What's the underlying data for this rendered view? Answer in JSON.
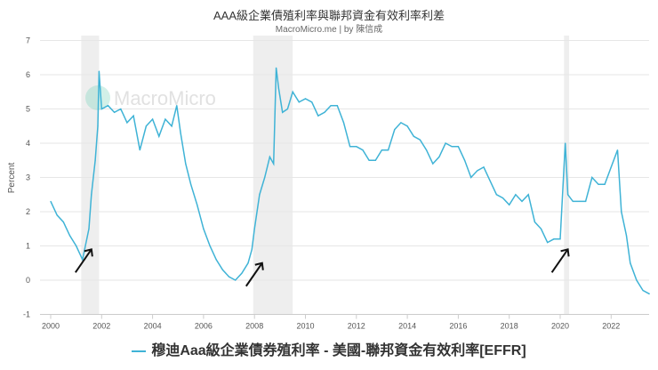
{
  "title": "AAA級企業債殖利率與聯邦資金有效利率利差",
  "subtitle": "MacroMicro.me | by 陳信成",
  "watermark": "MacroMicro",
  "chart_data": {
    "type": "line",
    "ylabel": "Percent",
    "xlabel": "",
    "xlim": [
      2000,
      2023.6
    ],
    "ylim": [
      -1,
      7
    ],
    "x_ticks": [
      "2000",
      "2002",
      "2004",
      "2006",
      "2008",
      "2010",
      "2012",
      "2014",
      "2016",
      "2018",
      "2020",
      "2022"
    ],
    "y_ticks": [
      "7",
      "6",
      "5",
      "4",
      "3",
      "2",
      "1",
      "0",
      "-1"
    ],
    "grid": "horizontal",
    "legend_placement": "bottom",
    "line_color": "#3fb3d6",
    "shaded_periods": [
      [
        2001.2,
        2001.9
      ],
      [
        2007.95,
        2009.5
      ],
      [
        2020.15,
        2020.35
      ]
    ],
    "annotations": [
      {
        "type": "arrow",
        "x": 2001.6,
        "y": 0.9
      },
      {
        "type": "arrow",
        "x": 2008.3,
        "y": 0.5
      },
      {
        "type": "arrow",
        "x": 2020.3,
        "y": 0.9
      }
    ],
    "series": [
      {
        "name": "穆迪Aaa級企業債券殖利率 - 美國-聯邦資金有效利率[EFFR]",
        "x": [
          2000.0,
          2000.25,
          2000.5,
          2000.75,
          2001.0,
          2001.25,
          2001.5,
          2001.6,
          2001.75,
          2001.85,
          2001.9,
          2002.0,
          2002.25,
          2002.5,
          2002.75,
          2003.0,
          2003.25,
          2003.5,
          2003.75,
          2004.0,
          2004.25,
          2004.5,
          2004.75,
          2004.95,
          2005.1,
          2005.3,
          2005.5,
          2005.75,
          2006.0,
          2006.25,
          2006.5,
          2006.75,
          2007.0,
          2007.25,
          2007.5,
          2007.75,
          2007.9,
          2008.0,
          2008.2,
          2008.4,
          2008.6,
          2008.75,
          2008.85,
          2008.95,
          2009.1,
          2009.3,
          2009.5,
          2009.75,
          2010.0,
          2010.25,
          2010.5,
          2010.75,
          2011.0,
          2011.25,
          2011.5,
          2011.75,
          2012.0,
          2012.25,
          2012.5,
          2012.75,
          2013.0,
          2013.25,
          2013.5,
          2013.75,
          2014.0,
          2014.25,
          2014.5,
          2014.75,
          2015.0,
          2015.25,
          2015.5,
          2015.75,
          2016.0,
          2016.25,
          2016.5,
          2016.75,
          2017.0,
          2017.25,
          2017.5,
          2017.75,
          2018.0,
          2018.25,
          2018.5,
          2018.75,
          2019.0,
          2019.25,
          2019.5,
          2019.75,
          2020.0,
          2020.2,
          2020.3,
          2020.5,
          2020.75,
          2021.0,
          2021.25,
          2021.5,
          2021.75,
          2022.0,
          2022.25,
          2022.4,
          2022.6,
          2022.75,
          2023.0,
          2023.25,
          2023.5
        ],
        "values": [
          2.3,
          1.9,
          1.7,
          1.3,
          1.0,
          0.6,
          1.5,
          2.5,
          3.5,
          4.5,
          6.1,
          5.0,
          5.1,
          4.9,
          5.0,
          4.6,
          4.8,
          3.8,
          4.5,
          4.7,
          4.2,
          4.7,
          4.5,
          5.1,
          4.3,
          3.4,
          2.8,
          2.2,
          1.5,
          1.0,
          0.6,
          0.3,
          0.1,
          0.0,
          0.2,
          0.5,
          0.9,
          1.5,
          2.5,
          3.0,
          3.6,
          3.4,
          6.2,
          5.6,
          4.9,
          5.0,
          5.5,
          5.2,
          5.3,
          5.2,
          4.8,
          4.9,
          5.1,
          5.1,
          4.6,
          3.9,
          3.9,
          3.8,
          3.5,
          3.5,
          3.8,
          3.8,
          4.4,
          4.6,
          4.5,
          4.2,
          4.1,
          3.8,
          3.4,
          3.6,
          4.0,
          3.9,
          3.9,
          3.5,
          3.0,
          3.2,
          3.3,
          2.9,
          2.5,
          2.4,
          2.2,
          2.5,
          2.3,
          2.5,
          1.7,
          1.5,
          1.1,
          1.2,
          1.2,
          4.0,
          2.5,
          2.3,
          2.3,
          2.3,
          3.0,
          2.8,
          2.8,
          3.3,
          3.8,
          2.0,
          1.3,
          0.5,
          0.0,
          -0.3,
          -0.4
        ]
      }
    ]
  }
}
